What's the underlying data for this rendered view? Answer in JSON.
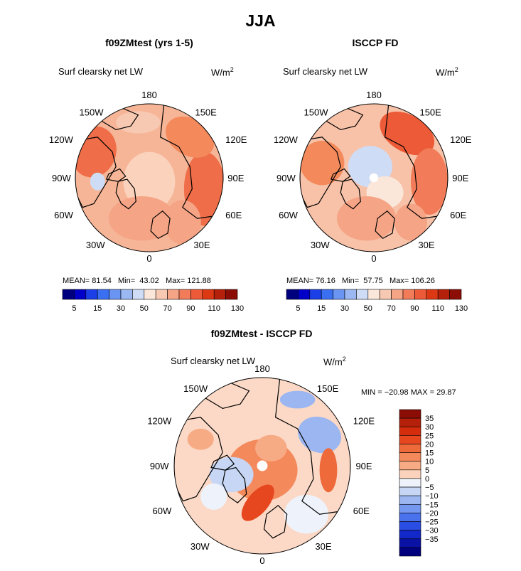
{
  "title": "JJA",
  "colors": {
    "background": "#ffffff",
    "ocean_base_top": "#f6bb9e",
    "land_outline": "#000000"
  },
  "panels": [
    {
      "title": "f09ZMtest (yrs 1-5)",
      "variable": "Surf clearsky net LW",
      "units_base": "W/m",
      "units_exp": "2",
      "stats": {
        "mean_label": "MEAN=",
        "mean": "81.54",
        "min_label": "Min=",
        "min": "43.02",
        "max_label": "Max=",
        "max": "121.88"
      },
      "colorbar_labels": [
        "5",
        "15",
        "30",
        "50",
        "70",
        "90",
        "110",
        "130"
      ]
    },
    {
      "title": "ISCCP FD",
      "variable": "Surf clearsky net LW",
      "units_base": "W/m",
      "units_exp": "2",
      "stats": {
        "mean_label": "MEAN=",
        "mean": "76.16",
        "min_label": "Min=",
        "min": "57.75",
        "max_label": "Max=",
        "max": "106.26"
      },
      "colorbar_labels": [
        "5",
        "15",
        "30",
        "50",
        "70",
        "90",
        "110",
        "130"
      ]
    },
    {
      "title": "f09ZMtest - ISCCP FD",
      "variable": "Surf clearsky net LW",
      "units_base": "W/m",
      "units_exp": "2",
      "stats_text": "MIN = −20.98 MAX =   29.87",
      "colorbar_labels": [
        "35",
        "30",
        "25",
        "20",
        "15",
        "10",
        "5",
        "0",
        "−5",
        "−10",
        "−15",
        "−20",
        "−25",
        "−30",
        "−35"
      ]
    }
  ],
  "lon_labels": {
    "top": "180",
    "bottom": "0",
    "upper_left": "150W",
    "upper_right": "150E",
    "left_upper": "120W",
    "right_upper": "120E",
    "left": "90W",
    "right": "90E",
    "left_lower": "60W",
    "right_lower": "60E",
    "lower_left": "30W",
    "lower_right": "30E"
  },
  "colorbars": {
    "abs": [
      "#00007f",
      "#0000c8",
      "#1a3fe6",
      "#3a6ff2",
      "#6a95f2",
      "#9bb8f2",
      "#cfdcf5",
      "#fbe6da",
      "#f8c9b2",
      "#f6a486",
      "#f27c59",
      "#ec5a37",
      "#dd3814",
      "#b5200a",
      "#8b0d05"
    ],
    "diff": [
      "#8b0d05",
      "#b5200a",
      "#d32d0e",
      "#e6471f",
      "#ef6a3b",
      "#f48a5c",
      "#f7ab85",
      "#fbd3bc",
      "#eef2fa",
      "#c6d6f4",
      "#9bb6f1",
      "#7497f0",
      "#4a72ec",
      "#2a4ee4",
      "#1228c8",
      "#0a12a6",
      "#00007f"
    ]
  }
}
